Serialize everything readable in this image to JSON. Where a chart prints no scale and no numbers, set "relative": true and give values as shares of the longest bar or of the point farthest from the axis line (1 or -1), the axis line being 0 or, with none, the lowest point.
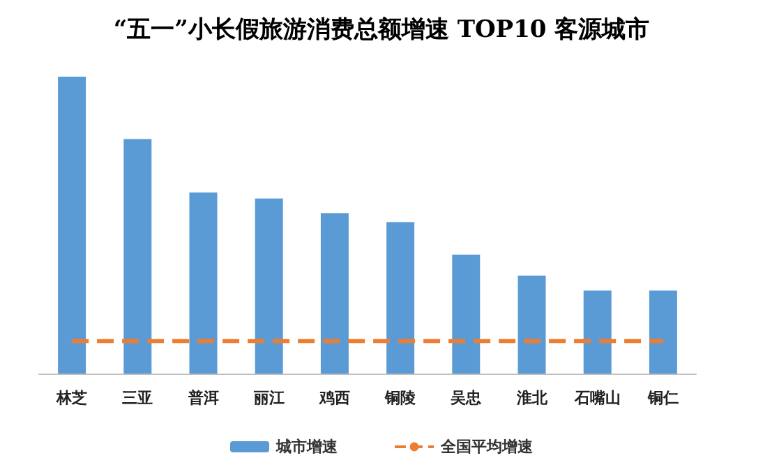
{
  "chart_data": {
    "type": "bar",
    "title": "“五一”小长假旅游消费总额增速 TOP10 客源城市",
    "relative": true,
    "categories": [
      "林芝",
      "三亚",
      "普洱",
      "丽江",
      "鸡西",
      "铜陵",
      "吴忠",
      "淮北",
      "石嘴山",
      "铜仁"
    ],
    "series": [
      {
        "name": "城市增速",
        "color": "#5b9bd5",
        "values": [
          1,
          0.79,
          0.61,
          0.59,
          0.54,
          0.51,
          0.4,
          0.33,
          0.28,
          0.28
        ]
      },
      {
        "name": "全国平均增速",
        "type": "line",
        "color": "#ed7d31",
        "line_style": "dashed",
        "marker": "none",
        "values": [
          0.11,
          0.11,
          0.11,
          0.11,
          0.11,
          0.11,
          0.11,
          0.11,
          0.11,
          0.11
        ]
      }
    ],
    "legend": "bottom",
    "grid": false
  }
}
